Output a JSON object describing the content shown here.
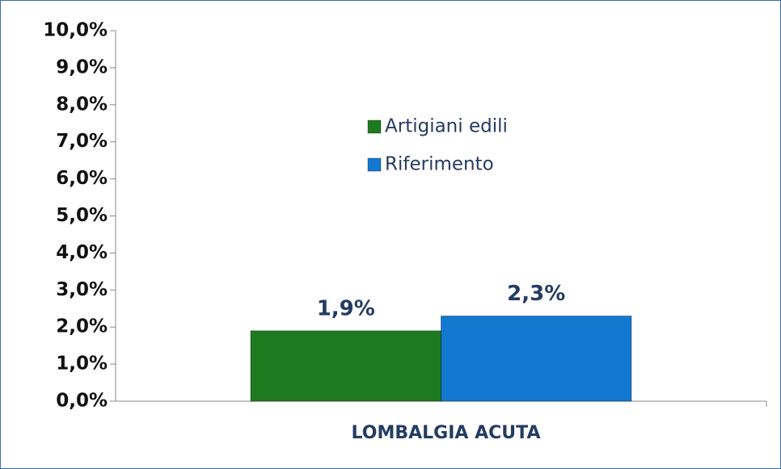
{
  "chart_data": {
    "type": "bar",
    "categories": [
      "LOMBALGIA ACUTA"
    ],
    "series": [
      {
        "name": "Artigiani edili",
        "color": "#1e7a1e",
        "values": [
          1.9
        ],
        "value_labels": [
          "1,9%"
        ]
      },
      {
        "name": "Riferimento",
        "color": "#1378d0",
        "values": [
          2.3
        ],
        "value_labels": [
          "2,3%"
        ]
      }
    ],
    "ylim": [
      0,
      10
    ],
    "yticks": [
      {
        "value": 0,
        "label": "0,0%"
      },
      {
        "value": 1,
        "label": "1,0%"
      },
      {
        "value": 2,
        "label": "2,0%"
      },
      {
        "value": 3,
        "label": "3,0%"
      },
      {
        "value": 4,
        "label": "4,0%"
      },
      {
        "value": 5,
        "label": "5,0%"
      },
      {
        "value": 6,
        "label": "6,0%"
      },
      {
        "value": 7,
        "label": "7,0%"
      },
      {
        "value": 8,
        "label": "8,0%"
      },
      {
        "value": 9,
        "label": "9,0%"
      },
      {
        "value": 10,
        "label": "10,0%"
      }
    ],
    "legend": "center"
  }
}
